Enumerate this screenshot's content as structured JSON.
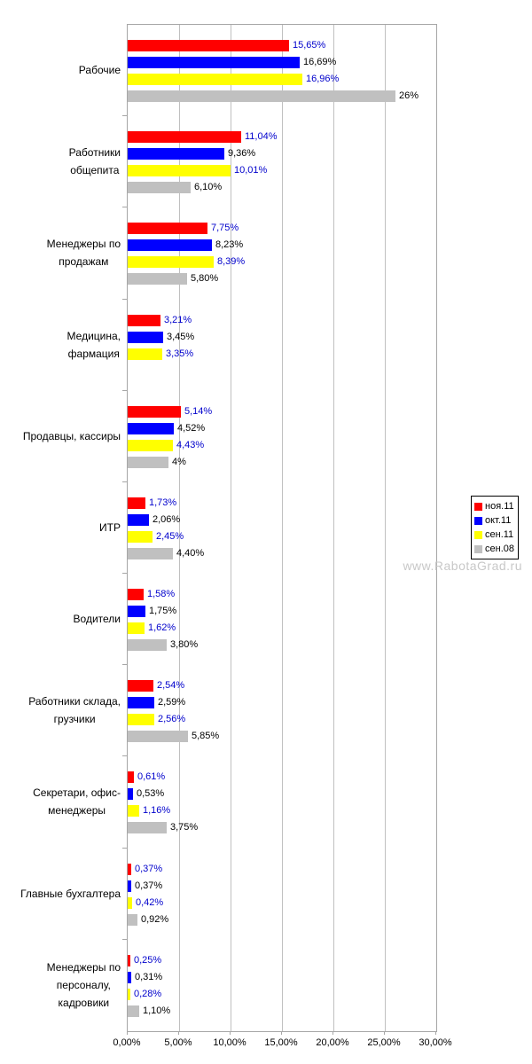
{
  "watermark": {
    "text": "www.RabotaGrad.ru"
  },
  "colors": {
    "gridline": "#c0c0c0",
    "plot_border": "#a6a6a6",
    "tick": "#a6a6a6",
    "axis_text": "#000000",
    "watermark_text": "#c8c8c8",
    "value_label_blue": "#0000cc",
    "value_label_black": "#000000"
  },
  "chart_data": {
    "type": "bar",
    "orientation": "horizontal",
    "title": "",
    "xlabel": "",
    "ylabel": "",
    "xlim": [
      0,
      30
    ],
    "grid": true,
    "gridline_step_percent": 5,
    "legend_position": "right",
    "x_tick_labels": [
      "0,00%",
      "5,00%",
      "10,00%",
      "15,00%",
      "20,00%",
      "25,00%",
      "30,00%"
    ],
    "categories": [
      {
        "lines": [
          "Рабочие"
        ]
      },
      {
        "lines": [
          "Работники",
          "общепита"
        ]
      },
      {
        "lines": [
          "Менеджеры по",
          "продажам"
        ]
      },
      {
        "lines": [
          "Медицина,",
          "фармация"
        ]
      },
      {
        "lines": [
          "Продавцы, кассиры"
        ]
      },
      {
        "lines": [
          "ИТР"
        ]
      },
      {
        "lines": [
          "Водители"
        ]
      },
      {
        "lines": [
          "Работники склада,",
          "грузчики"
        ]
      },
      {
        "lines": [
          "Секретари, офис-",
          "менеджеры"
        ]
      },
      {
        "lines": [
          "Главные бухгалтера"
        ]
      },
      {
        "lines": [
          "Менеджеры по",
          "персоналу,",
          "кадровики"
        ]
      }
    ],
    "series": [
      {
        "name": "ноя.11",
        "color": "#ff0000",
        "label_text_color": "#0000cc",
        "values": [
          15.65,
          11.04,
          7.75,
          3.21,
          5.14,
          1.73,
          1.58,
          2.54,
          0.61,
          0.37,
          0.25
        ],
        "labels": [
          "15,65%",
          "11,04%",
          "7,75%",
          "3,21%",
          "5,14%",
          "1,73%",
          "1,58%",
          "2,54%",
          "0,61%",
          "0,37%",
          "0,25%"
        ]
      },
      {
        "name": "окт.11",
        "color": "#0000ff",
        "label_text_color": "#000000",
        "values": [
          16.69,
          9.36,
          8.23,
          3.45,
          4.52,
          2.06,
          1.75,
          2.59,
          0.53,
          0.37,
          0.31
        ],
        "labels": [
          "16,69%",
          "9,36%",
          "8,23%",
          "3,45%",
          "4,52%",
          "2,06%",
          "1,75%",
          "2,59%",
          "0,53%",
          "0,37%",
          "0,31%"
        ]
      },
      {
        "name": "сен.11",
        "color": "#ffff00",
        "label_text_color": "#0000cc",
        "values": [
          16.96,
          10.01,
          8.39,
          3.35,
          4.43,
          2.45,
          1.62,
          2.56,
          1.16,
          0.42,
          0.28
        ],
        "labels": [
          "16,96%",
          "10,01%",
          "8,39%",
          "3,35%",
          "4,43%",
          "2,45%",
          "1,62%",
          "2,56%",
          "1,16%",
          "0,42%",
          "0,28%"
        ]
      },
      {
        "name": "сен.08",
        "color": "#c0c0c0",
        "label_text_color": "#000000",
        "values": [
          26,
          6.1,
          5.8,
          null,
          4,
          4.4,
          3.8,
          5.85,
          3.75,
          0.92,
          1.1
        ],
        "labels": [
          "26%",
          "6,10%",
          "5,80%",
          null,
          "4%",
          "4,40%",
          "3,80%",
          "5,85%",
          "3,75%",
          "0,92%",
          "1,10%"
        ]
      }
    ]
  }
}
